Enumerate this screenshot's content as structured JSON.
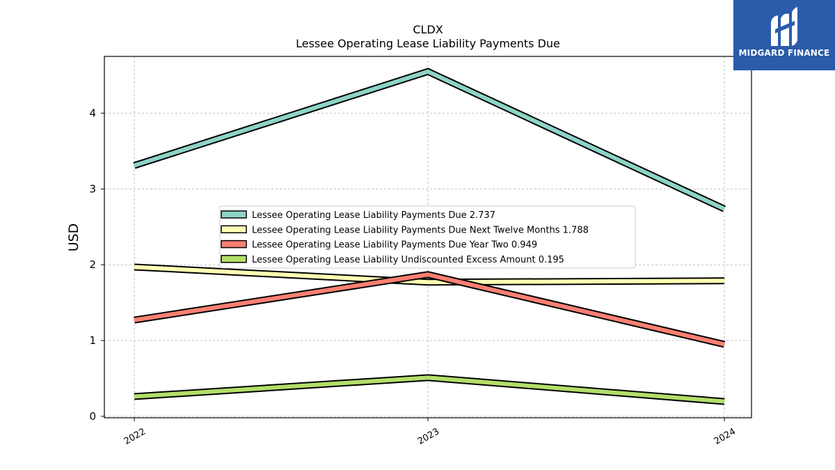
{
  "chart_data": {
    "type": "line",
    "title": "CLDX",
    "subtitle": "Lessee Operating Lease Liability Payments Due",
    "ylabel": "USD",
    "xlabel": "",
    "categories": [
      "2022",
      "2023",
      "2024"
    ],
    "ylim": [
      0,
      4.75
    ],
    "yticks": [
      0,
      1,
      2,
      3,
      4
    ],
    "grid": true,
    "legend_position": "center",
    "series": [
      {
        "name": "Lessee Operating Lease Liability Payments Due",
        "legend_label": "Lessee Operating Lease Liability Payments Due  2.737",
        "values": [
          3.31,
          4.55,
          2.737
        ],
        "color": "#8dd3c7"
      },
      {
        "name": "Lessee Operating Lease Liability Payments Due Next Twelve Months",
        "legend_label": "Lessee Operating Lease Liability Payments Due Next Twelve Months  1.788",
        "values": [
          1.97,
          1.77,
          1.788
        ],
        "color": "#ffffb3"
      },
      {
        "name": "Lessee Operating Lease Liability Payments Due Year Two",
        "legend_label": "Lessee Operating Lease Liability Payments Due Year Two  0.949",
        "values": [
          1.27,
          1.87,
          0.949
        ],
        "color": "#fb8072"
      },
      {
        "name": "Lessee Operating Lease Liability Undiscounted Excess Amount",
        "legend_label": "Lessee Operating Lease Liability Undiscounted Excess Amount  0.195",
        "values": [
          0.26,
          0.51,
          0.195
        ],
        "color": "#b3de69"
      }
    ]
  },
  "logo": {
    "text": "MIDGARD FINANCE",
    "color": "#2a5caa"
  }
}
